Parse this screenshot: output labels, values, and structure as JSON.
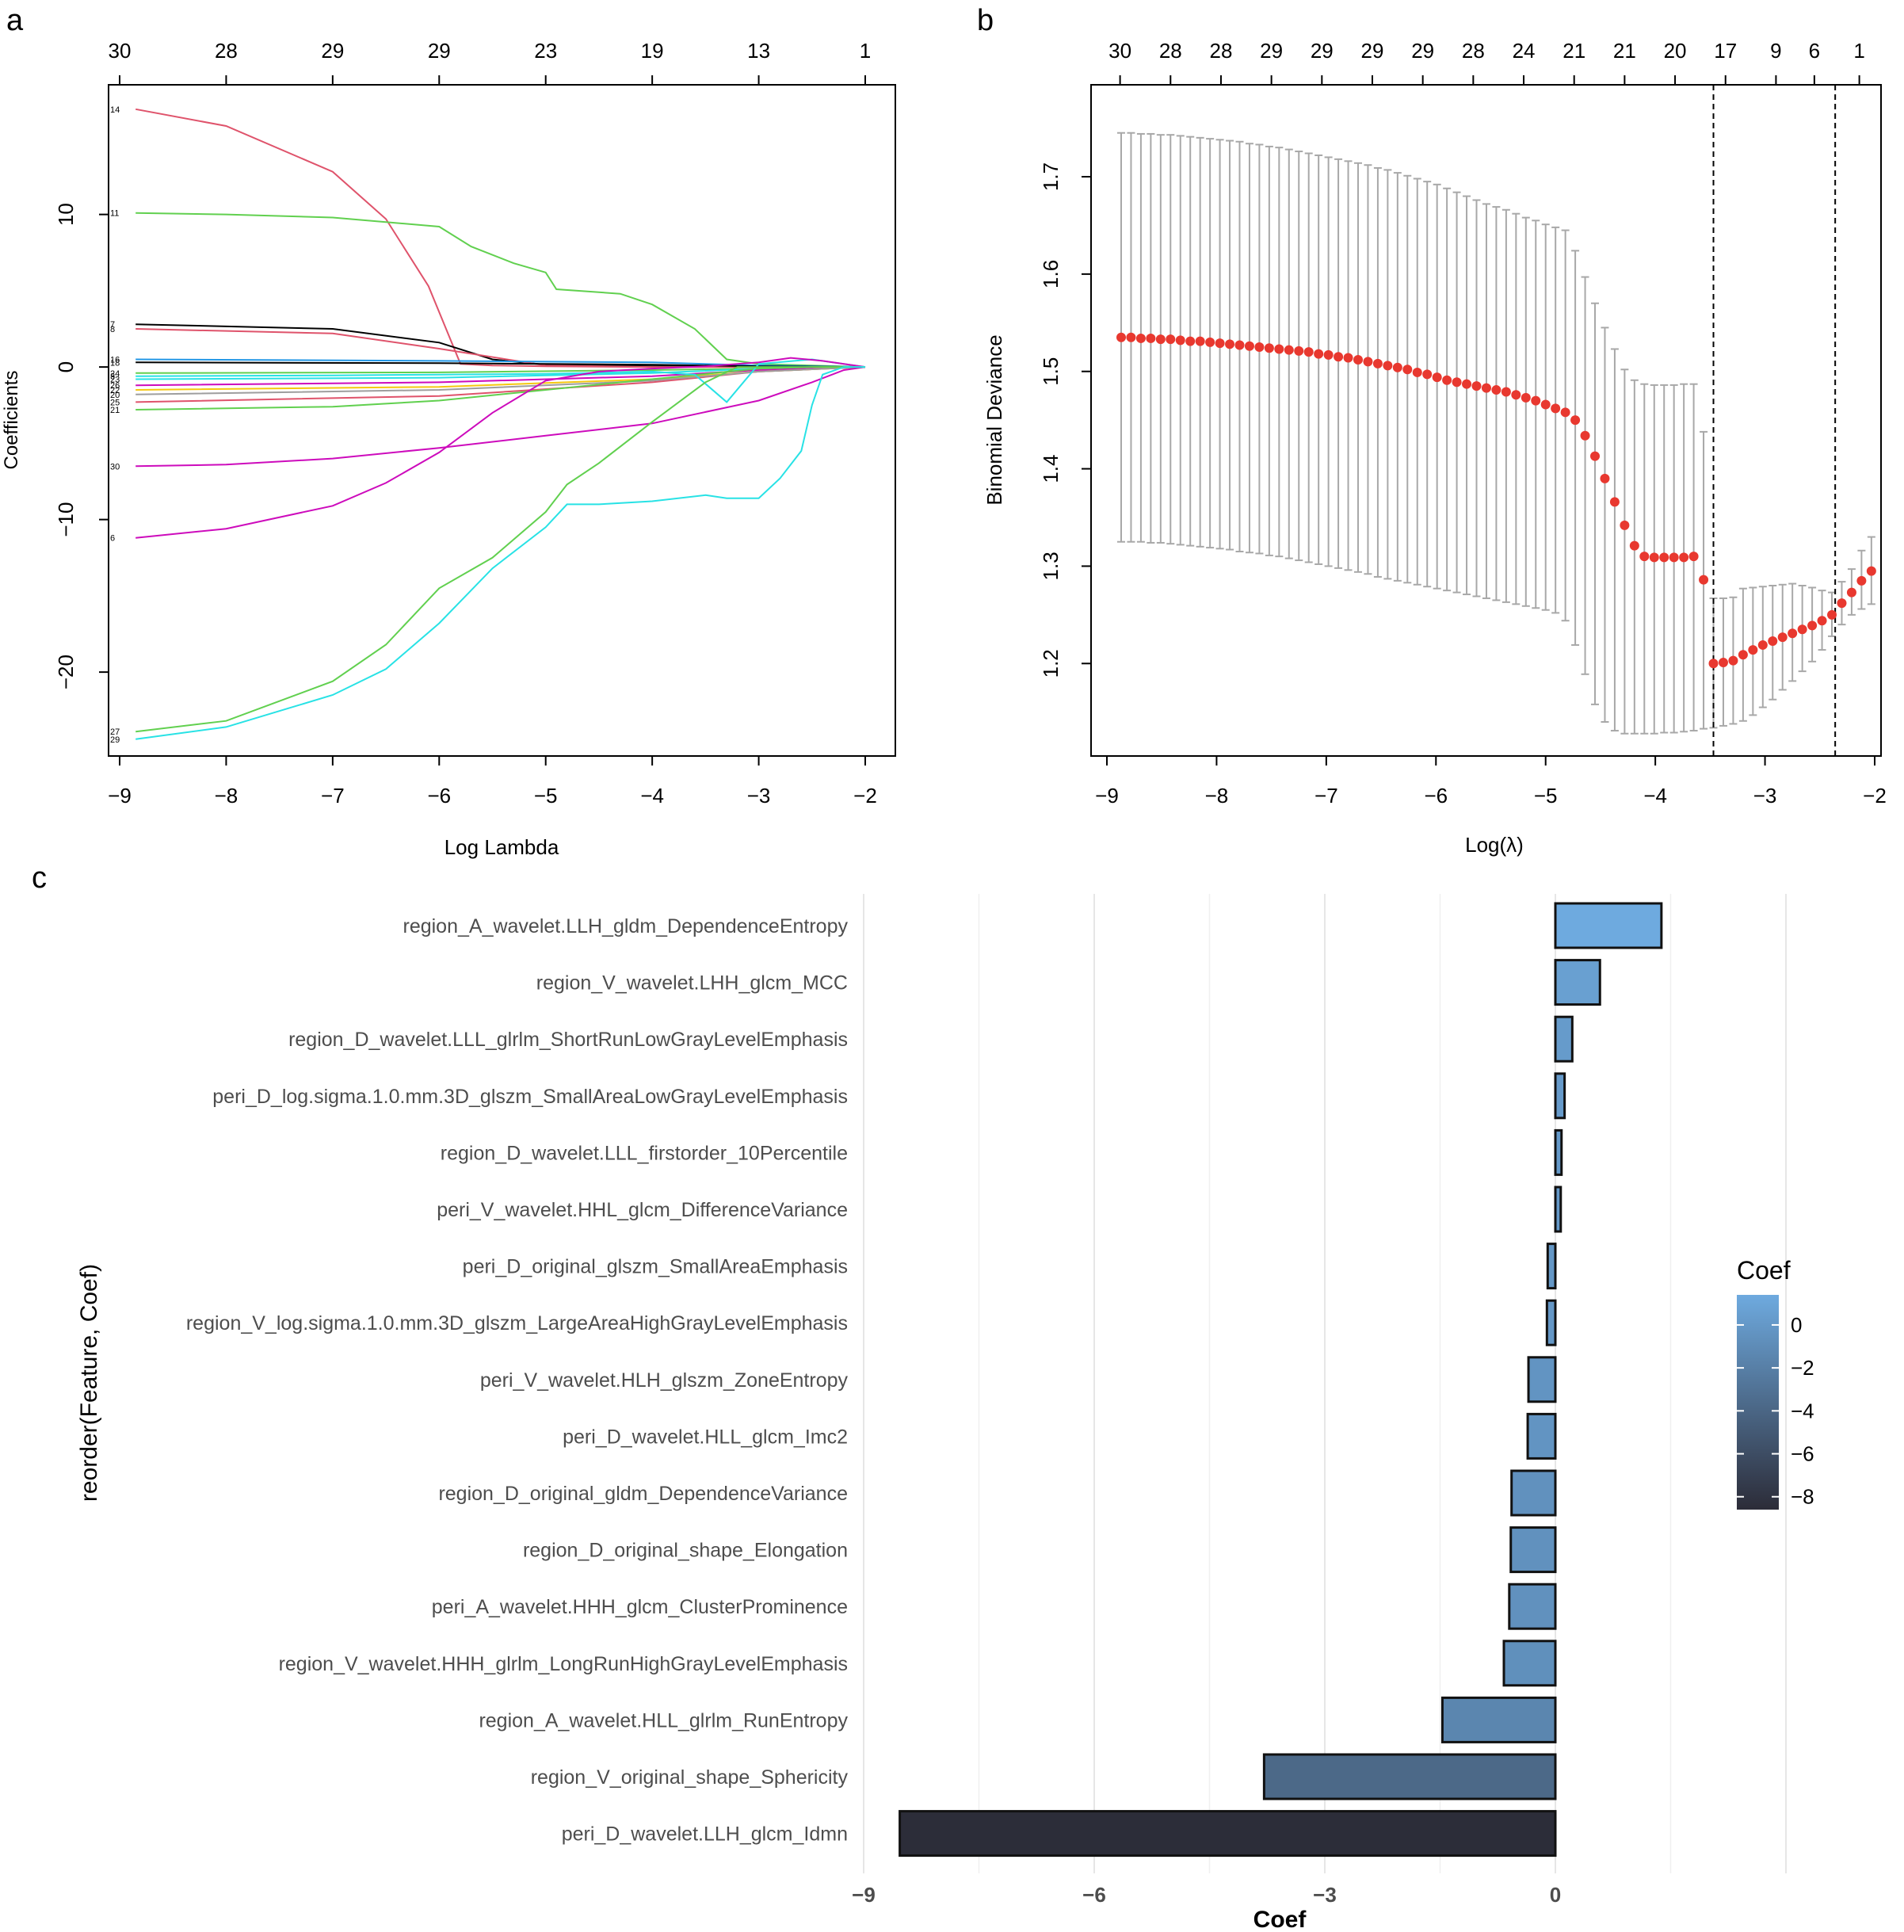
{
  "figure_labels": {
    "a": "a",
    "b": "b",
    "c": "c"
  },
  "chart_data": [
    {
      "panel": "a",
      "type": "line",
      "title": "",
      "xlabel": "Log Lambda",
      "ylabel": "Coefficients",
      "xlim": [
        -9.0,
        -2.0
      ],
      "ylim": [
        -25.5,
        18.5
      ],
      "x_ticks": [
        -9,
        -8,
        -7,
        -6,
        -5,
        -4,
        -3,
        -2
      ],
      "x_tick_labels": [
        "−9",
        "−8",
        "−7",
        "−6",
        "−5",
        "−4",
        "−3",
        "−2"
      ],
      "y_ticks": [
        -20,
        -10,
        0,
        10
      ],
      "y_tick_labels": [
        "−20",
        "−10",
        "0",
        "10"
      ],
      "top_axis": {
        "positions": [
          -9,
          -8,
          -7,
          -6,
          -5,
          -4,
          -3,
          -2
        ],
        "labels": [
          "30",
          "28",
          "29",
          "29",
          "23",
          "19",
          "13",
          "1"
        ]
      },
      "series": [
        {
          "name": "14",
          "color": "#DF536B",
          "x": [
            -8.85,
            -8.0,
            -7.0,
            -6.5,
            -6.1,
            -5.8,
            -5.5,
            -5.0,
            -4.0,
            -3.0,
            -2.5,
            -2.0
          ],
          "values": [
            16.9,
            15.8,
            12.8,
            9.7,
            5.3,
            0.2,
            0.1,
            0.05,
            0,
            0,
            0,
            0
          ]
        },
        {
          "name": "11",
          "color": "#61D04F",
          "x": [
            -8.85,
            -8.0,
            -7.0,
            -6.0,
            -5.7,
            -5.3,
            -5.0,
            -4.9,
            -4.3,
            -4.0,
            -3.6,
            -3.3,
            -3.0,
            -2.5,
            -2.0
          ],
          "values": [
            10.1,
            10.0,
            9.8,
            9.2,
            7.9,
            6.8,
            6.2,
            5.1,
            4.8,
            4.1,
            2.5,
            0.5,
            0.2,
            0.1,
            0
          ]
        },
        {
          "name": "7",
          "color": "#000000",
          "x": [
            -8.85,
            -7.0,
            -6.0,
            -5.5,
            -5.0,
            -4.0,
            -3.0,
            -2.0
          ],
          "values": [
            2.8,
            2.5,
            1.6,
            0.5,
            0.15,
            0.05,
            0,
            0
          ]
        },
        {
          "name": "8",
          "color": "#DF536B",
          "x": [
            -8.85,
            -7.0,
            -6.0,
            -5.0,
            -4.0,
            -3.0,
            -2.0
          ],
          "values": [
            2.5,
            2.2,
            1.2,
            0.1,
            0,
            0,
            0
          ]
        },
        {
          "name": "16",
          "color": "#2297E6",
          "x": [
            -8.85,
            -6.0,
            -4.0,
            -3.0,
            -2.0
          ],
          "values": [
            0.5,
            0.4,
            0.3,
            0.1,
            0
          ]
        },
        {
          "name": "18",
          "color": "#000000",
          "x": [
            -8.85,
            -6.0,
            -4.0,
            -3.0,
            -2.0
          ],
          "values": [
            0.3,
            0.25,
            0.15,
            0.05,
            0
          ]
        },
        {
          "name": "24",
          "color": "#61D04F",
          "x": [
            -8.85,
            -6.0,
            -4.0,
            -3.0,
            -2.0
          ],
          "values": [
            -0.4,
            -0.35,
            -0.2,
            -0.1,
            0
          ]
        },
        {
          "name": "23",
          "color": "#28E2E5",
          "x": [
            -8.85,
            -6.0,
            -4.0,
            -3.0,
            -2.0
          ],
          "values": [
            -0.8,
            -0.7,
            -0.4,
            -0.1,
            0
          ]
        },
        {
          "name": "26",
          "color": "#CD0BBC",
          "x": [
            -8.85,
            -6.0,
            -4.0,
            -3.0,
            -2.0
          ],
          "values": [
            -1.2,
            -1.0,
            -0.6,
            -0.2,
            0
          ]
        },
        {
          "name": "22",
          "color": "#F5C710",
          "x": [
            -8.85,
            -6.0,
            -4.0,
            -3.0,
            -2.0
          ],
          "values": [
            -1.5,
            -1.3,
            -0.8,
            -0.3,
            0
          ]
        },
        {
          "name": "25",
          "color": "#DF536B",
          "x": [
            -8.85,
            -6.0,
            -4.0,
            -3.0,
            -2.0
          ],
          "values": [
            -2.3,
            -1.9,
            -1.0,
            -0.3,
            0
          ]
        },
        {
          "name": "20",
          "color": "#9E9E9E",
          "x": [
            -8.85,
            -6.0,
            -4.0,
            -3.0,
            -2.0
          ],
          "values": [
            -1.8,
            -1.5,
            -0.9,
            -0.3,
            0
          ]
        },
        {
          "name": "21",
          "color": "#61D04F",
          "x": [
            -8.85,
            -7.0,
            -6.0,
            -5.0,
            -4.0,
            -3.0,
            -2.5,
            -2.0
          ],
          "values": [
            -2.8,
            -2.6,
            -2.2,
            -1.5,
            -0.8,
            -0.1,
            0,
            0
          ]
        },
        {
          "name": "3",
          "color": "#28E2E5",
          "x": [
            -8.85,
            -7.0,
            -6.0,
            -5.0,
            -4.0,
            -3.6,
            -3.3,
            -3.0,
            -2.5,
            -2.0
          ],
          "values": [
            -0.6,
            -0.55,
            -0.5,
            -0.45,
            -0.3,
            -0.5,
            -2.3,
            0.2,
            0.5,
            0
          ]
        },
        {
          "name": "30",
          "color": "#CD0BBC",
          "x": [
            -8.85,
            -8.0,
            -7.0,
            -6.0,
            -5.0,
            -4.0,
            -3.0,
            -2.5,
            -2.2,
            -2.0
          ],
          "values": [
            -6.5,
            -6.4,
            -6.0,
            -5.3,
            -4.5,
            -3.7,
            -2.2,
            -1.0,
            -0.2,
            0
          ]
        },
        {
          "name": "6",
          "color": "#CD0BBC",
          "x": [
            -8.85,
            -8.0,
            -7.0,
            -6.5,
            -6.0,
            -5.5,
            -5.0,
            -4.5,
            -4.0,
            -3.5,
            -3.0,
            -2.7,
            -2.4,
            -2.0
          ],
          "values": [
            -11.2,
            -10.6,
            -9.1,
            -7.6,
            -5.6,
            -3.0,
            -0.9,
            -0.3,
            -0.1,
            0.05,
            0.3,
            0.6,
            0.4,
            0
          ]
        },
        {
          "name": "27",
          "color": "#61D04F",
          "x": [
            -8.85,
            -8.0,
            -7.0,
            -6.5,
            -6.0,
            -5.5,
            -5.0,
            -4.8,
            -4.5,
            -4.0,
            -3.5,
            -3.2,
            -3.0,
            -2.5,
            -2.0
          ],
          "values": [
            -23.9,
            -23.2,
            -20.6,
            -18.2,
            -14.5,
            -12.5,
            -9.5,
            -7.7,
            -6.3,
            -3.6,
            -1.0,
            0,
            0,
            0,
            0
          ]
        },
        {
          "name": "29",
          "color": "#28E2E5",
          "x": [
            -8.85,
            -8.0,
            -7.0,
            -6.5,
            -6.0,
            -5.5,
            -5.0,
            -4.8,
            -4.5,
            -4.0,
            -3.5,
            -3.3,
            -3.0,
            -2.8,
            -2.6,
            -2.5,
            -2.4,
            -2.2,
            -2.0
          ],
          "values": [
            -24.4,
            -23.6,
            -21.5,
            -19.8,
            -16.8,
            -13.2,
            -10.5,
            -9.0,
            -9.0,
            -8.8,
            -8.4,
            -8.6,
            -8.6,
            -7.3,
            -5.5,
            -2.5,
            -0.5,
            0,
            0
          ]
        }
      ]
    },
    {
      "panel": "b",
      "type": "scatter",
      "title": "",
      "xlabel": "Log(λ)",
      "ylabel": "Binomial Deviance",
      "xlim": [
        -9.0,
        -2.0
      ],
      "ylim": [
        1.105,
        1.77
      ],
      "x_ticks": [
        -9,
        -8,
        -7,
        -6,
        -5,
        -4,
        -3,
        -2
      ],
      "x_tick_labels": [
        "−9",
        "−8",
        "−7",
        "−6",
        "−5",
        "−4",
        "−3",
        "−2"
      ],
      "y_ticks": [
        1.2,
        1.3,
        1.4,
        1.5,
        1.6,
        1.7
      ],
      "y_tick_labels": [
        "1.2",
        "1.3",
        "1.4",
        "1.5",
        "1.6",
        "1.7"
      ],
      "top_axis": {
        "positions": [
          -8.88,
          -8.42,
          -7.96,
          -7.5,
          -7.04,
          -6.58,
          -6.12,
          -5.66,
          -5.2,
          -4.74,
          -4.28,
          -3.82,
          -3.36,
          -2.9,
          -2.55,
          -2.14
        ],
        "labels": [
          "30",
          "28",
          "28",
          "29",
          "29",
          "29",
          "29",
          "28",
          "24",
          "21",
          "21",
          "20",
          "17",
          "9",
          "6",
          "1"
        ]
      },
      "vlines": [
        -3.47,
        -2.36
      ],
      "log_lambda": [
        -8.87,
        -8.78,
        -8.69,
        -8.6,
        -8.51,
        -8.42,
        -8.33,
        -8.24,
        -8.15,
        -8.06,
        -7.97,
        -7.88,
        -7.79,
        -7.7,
        -7.61,
        -7.52,
        -7.43,
        -7.34,
        -7.25,
        -7.16,
        -7.07,
        -6.98,
        -6.89,
        -6.8,
        -6.71,
        -6.62,
        -6.53,
        -6.44,
        -6.35,
        -6.26,
        -6.17,
        -6.08,
        -5.99,
        -5.9,
        -5.81,
        -5.72,
        -5.63,
        -5.54,
        -5.45,
        -5.36,
        -5.27,
        -5.18,
        -5.09,
        -5.0,
        -4.91,
        -4.82,
        -4.73,
        -4.64,
        -4.55,
        -4.46,
        -4.37,
        -4.28,
        -4.19,
        -4.1,
        -4.01,
        -3.92,
        -3.83,
        -3.74,
        -3.65,
        -3.56,
        -3.47,
        -3.38,
        -3.29,
        -3.2,
        -3.11,
        -3.02,
        -2.93,
        -2.84,
        -2.75,
        -2.66,
        -2.57,
        -2.48,
        -2.39,
        -2.3,
        -2.21,
        -2.12,
        -2.03
      ],
      "deviance": [
        1.535,
        1.535,
        1.534,
        1.534,
        1.533,
        1.533,
        1.532,
        1.531,
        1.531,
        1.53,
        1.529,
        1.528,
        1.527,
        1.526,
        1.525,
        1.524,
        1.523,
        1.522,
        1.521,
        1.52,
        1.518,
        1.517,
        1.515,
        1.514,
        1.512,
        1.51,
        1.508,
        1.506,
        1.504,
        1.502,
        1.499,
        1.497,
        1.494,
        1.491,
        1.489,
        1.487,
        1.485,
        1.483,
        1.481,
        1.479,
        1.476,
        1.473,
        1.47,
        1.466,
        1.462,
        1.458,
        1.45,
        1.434,
        1.413,
        1.39,
        1.366,
        1.342,
        1.321,
        1.31,
        1.309,
        1.309,
        1.309,
        1.309,
        1.31,
        1.286,
        1.2,
        1.201,
        1.203,
        1.209,
        1.214,
        1.219,
        1.223,
        1.227,
        1.231,
        1.235,
        1.239,
        1.244,
        1.25,
        1.262,
        1.273,
        1.285,
        1.295
      ],
      "error_low": [
        1.325,
        1.325,
        1.325,
        1.324,
        1.324,
        1.323,
        1.322,
        1.321,
        1.32,
        1.319,
        1.318,
        1.317,
        1.315,
        1.314,
        1.313,
        1.311,
        1.31,
        1.308,
        1.306,
        1.304,
        1.302,
        1.3,
        1.298,
        1.296,
        1.294,
        1.292,
        1.289,
        1.287,
        1.285,
        1.283,
        1.281,
        1.279,
        1.277,
        1.275,
        1.273,
        1.271,
        1.269,
        1.267,
        1.265,
        1.263,
        1.261,
        1.259,
        1.257,
        1.255,
        1.252,
        1.244,
        1.219,
        1.189,
        1.158,
        1.14,
        1.131,
        1.128,
        1.128,
        1.128,
        1.128,
        1.129,
        1.129,
        1.13,
        1.131,
        1.133,
        1.134,
        1.136,
        1.138,
        1.141,
        1.147,
        1.155,
        1.163,
        1.173,
        1.182,
        1.192,
        1.202,
        1.214,
        1.228,
        1.24,
        1.25,
        1.256,
        1.261
      ],
      "error_high": [
        1.745,
        1.745,
        1.744,
        1.744,
        1.743,
        1.743,
        1.742,
        1.741,
        1.74,
        1.739,
        1.738,
        1.737,
        1.736,
        1.734,
        1.733,
        1.731,
        1.73,
        1.728,
        1.726,
        1.724,
        1.722,
        1.72,
        1.718,
        1.716,
        1.714,
        1.712,
        1.709,
        1.707,
        1.704,
        1.701,
        1.698,
        1.695,
        1.692,
        1.688,
        1.684,
        1.68,
        1.676,
        1.672,
        1.669,
        1.666,
        1.662,
        1.658,
        1.655,
        1.651,
        1.648,
        1.645,
        1.624,
        1.597,
        1.57,
        1.545,
        1.523,
        1.502,
        1.491,
        1.487,
        1.486,
        1.486,
        1.486,
        1.487,
        1.487,
        1.438,
        1.267,
        1.267,
        1.268,
        1.277,
        1.278,
        1.279,
        1.28,
        1.281,
        1.282,
        1.28,
        1.278,
        1.275,
        1.273,
        1.284,
        1.297,
        1.316,
        1.33
      ]
    },
    {
      "panel": "c",
      "type": "bar",
      "orientation": "horizontal",
      "title": "",
      "xlabel": "Coef",
      "ylabel": "reorder(Feature, Coef)",
      "xlim": [
        -9.0,
        4.2
      ],
      "x_ticks": [
        -9,
        -6,
        -3,
        0
      ],
      "x_tick_labels": [
        "−9",
        "−6",
        "−3",
        "0"
      ],
      "categories": [
        "region_A_wavelet.LLH_gldm_DependenceEntropy",
        "region_V_wavelet.LHH_glcm_MCC",
        "region_D_wavelet.LLL_glrlm_ShortRunLowGrayLevelEmphasis",
        "peri_D_log.sigma.1.0.mm.3D_glszm_SmallAreaLowGrayLevelEmphasis",
        "region_D_wavelet.LLL_firstorder_10Percentile",
        "peri_V_wavelet.HHL_glcm_DifferenceVariance",
        "peri_D_original_glszm_SmallAreaEmphasis",
        "region_V_log.sigma.1.0.mm.3D_glszm_LargeAreaHighGrayLevelEmphasis",
        "peri_V_wavelet.HLH_glszm_ZoneEntropy",
        "peri_D_wavelet.HLL_glcm_Imc2",
        "region_D_original_gldm_DependenceVariance",
        "region_D_original_shape_Elongation",
        "peri_A_wavelet.HHH_glcm_ClusterProminence",
        "region_V_wavelet.HHH_glrlm_LongRunHighGrayLevelEmphasis",
        "region_A_wavelet.HLL_glrlm_RunEntropy",
        "region_V_original_shape_Sphericity",
        "peri_D_wavelet.LLH_glcm_Idmn"
      ],
      "values": [
        1.38,
        0.58,
        0.22,
        0.12,
        0.08,
        0.07,
        -0.1,
        -0.11,
        -0.35,
        -0.36,
        -0.57,
        -0.58,
        -0.6,
        -0.67,
        -1.47,
        -3.79,
        -8.53
      ],
      "legend": {
        "title": "Coef",
        "ticks": [
          0,
          -2,
          -4,
          -6,
          -8
        ],
        "tick_labels": [
          "0",
          "−2",
          "−4",
          "−6",
          "−8"
        ],
        "range": [
          -8.6,
          1.4
        ],
        "color_low": "#2c2c38",
        "color_high": "#6eaadf"
      }
    }
  ]
}
